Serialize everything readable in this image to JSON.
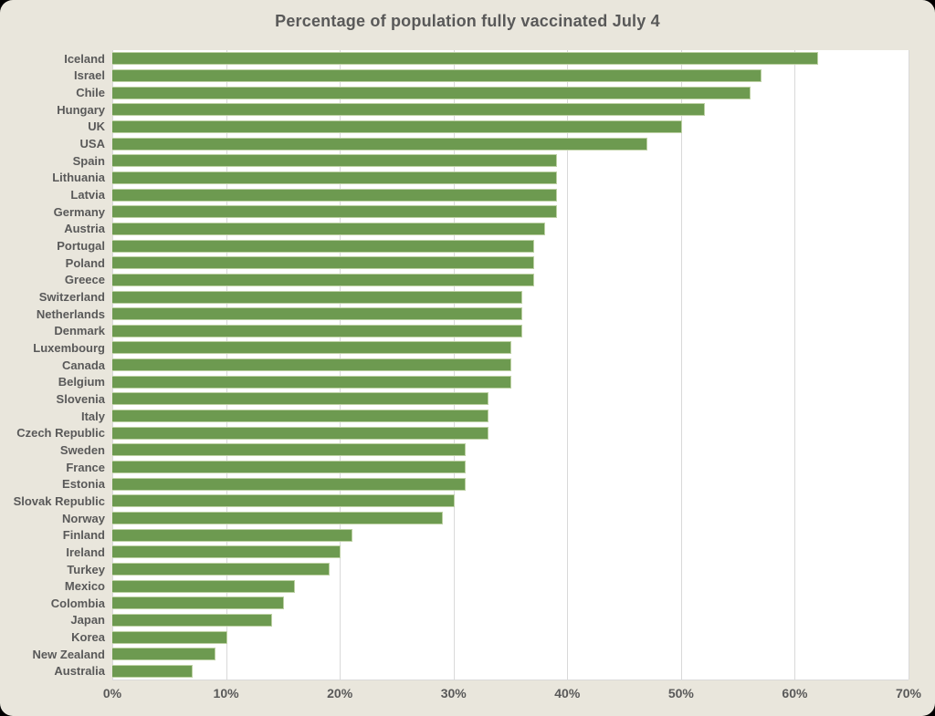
{
  "title": "Percentage of population fully vaccinated July 4",
  "colors": {
    "background": "#e9e6dc",
    "plot_background": "#ffffff",
    "gridline": "#d9d9d9",
    "bar": "#6d9a50",
    "bar_border": "#bdd1a4",
    "text": "#595959"
  },
  "chart_data": {
    "type": "bar",
    "orientation": "horizontal",
    "title": "Percentage of population fully vaccinated July 4",
    "xlabel": "",
    "ylabel": "",
    "xlim": [
      0,
      70
    ],
    "grid": true,
    "legend": false,
    "x_tick_labels": [
      "0%",
      "10%",
      "20%",
      "30%",
      "40%",
      "50%",
      "60%",
      "70%"
    ],
    "x_tick_values": [
      0,
      10,
      20,
      30,
      40,
      50,
      60,
      70
    ],
    "categories": [
      "Iceland",
      "Israel",
      "Chile",
      "Hungary",
      "UK",
      "USA",
      "Spain",
      "Lithuania",
      "Latvia",
      "Germany",
      "Austria",
      "Portugal",
      "Poland",
      "Greece",
      "Switzerland",
      "Netherlands",
      "Denmark",
      "Luxembourg",
      "Canada",
      "Belgium",
      "Slovenia",
      "Italy",
      "Czech Republic",
      "Sweden",
      "France",
      "Estonia",
      "Slovak Republic",
      "Norway",
      "Finland",
      "Ireland",
      "Turkey",
      "Mexico",
      "Colombia",
      "Japan",
      "Korea",
      "New Zealand",
      "Australia"
    ],
    "values": [
      62,
      57,
      56,
      52,
      50,
      47,
      39,
      39,
      39,
      39,
      38,
      37,
      37,
      37,
      36,
      36,
      36,
      35,
      35,
      35,
      33,
      33,
      33,
      31,
      31,
      31,
      30,
      29,
      21,
      20,
      19,
      16,
      15,
      14,
      10,
      9,
      7
    ],
    "unit": "%"
  }
}
